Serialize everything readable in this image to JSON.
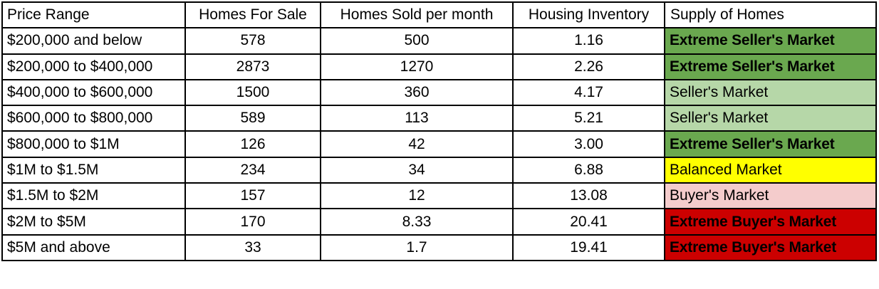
{
  "table": {
    "headers": [
      "Price Range",
      "Homes For Sale",
      "Homes Sold per month",
      "Housing Inventory",
      "Supply of Homes"
    ],
    "rows": [
      {
        "range": "$200,000 and below",
        "for_sale": "578",
        "sold": "500",
        "inventory": "1.16",
        "supply": "Extreme Seller's Market"
      },
      {
        "range": "$200,000 to $400,000",
        "for_sale": "2873",
        "sold": "1270",
        "inventory": "2.26",
        "supply": "Extreme Seller's Market"
      },
      {
        "range": "$400,000 to $600,000",
        "for_sale": "1500",
        "sold": "360",
        "inventory": "4.17",
        "supply": "Seller's Market"
      },
      {
        "range": "$600,000 to $800,000",
        "for_sale": "589",
        "sold": "113",
        "inventory": "5.21",
        "supply": "Seller's Market"
      },
      {
        "range": "$800,000 to $1M",
        "for_sale": "126",
        "sold": "42",
        "inventory": "3.00",
        "supply": "Extreme Seller's Market"
      },
      {
        "range": "$1M to $1.5M",
        "for_sale": "234",
        "sold": "34",
        "inventory": "6.88",
        "supply": "Balanced Market"
      },
      {
        "range": "$1.5M to $2M",
        "for_sale": "157",
        "sold": "12",
        "inventory": "13.08",
        "supply": "Buyer's Market"
      },
      {
        "range": "$2M to $5M",
        "for_sale": "170",
        "sold": "8.33",
        "inventory": "20.41",
        "supply": "Extreme Buyer's Market"
      },
      {
        "range": "$5M and above",
        "for_sale": "33",
        "sold": "1.7",
        "inventory": "19.41",
        "supply": "Extreme Buyer's Market"
      }
    ]
  },
  "supply_colors": {
    "Extreme Seller's Market": "#6aa84f",
    "Seller's Market": "#b6d7a8",
    "Balanced Market": "#ffff00",
    "Buyer's Market": "#f4cccc",
    "Extreme Buyer's Market": "#cc0000"
  }
}
